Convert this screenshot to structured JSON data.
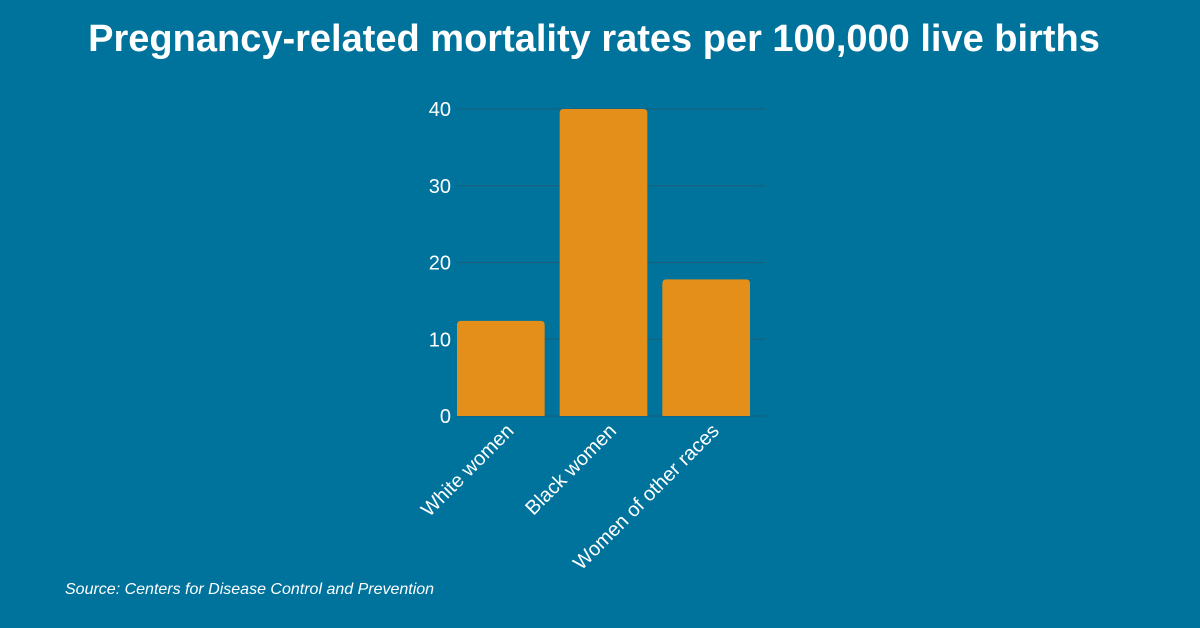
{
  "title": "Pregnancy-related mortality rates per 100,000 live births",
  "source": "Source: Centers for Disease Control and Prevention",
  "colors": {
    "background": "#00739c",
    "bar": "#e38f1a",
    "grid": "#1a5e78",
    "text": "#ffffff"
  },
  "chart_data": {
    "type": "bar",
    "title": "Pregnancy-related mortality rates per 100,000 live births",
    "categories": [
      "White women",
      "Black women",
      "Women of other races"
    ],
    "values": [
      12.4,
      40.0,
      17.8
    ],
    "ylim": [
      0,
      40
    ],
    "yticks": [
      0,
      10,
      20,
      30,
      40
    ],
    "xlabel": "",
    "ylabel": "",
    "grid": true,
    "legend": "none"
  }
}
